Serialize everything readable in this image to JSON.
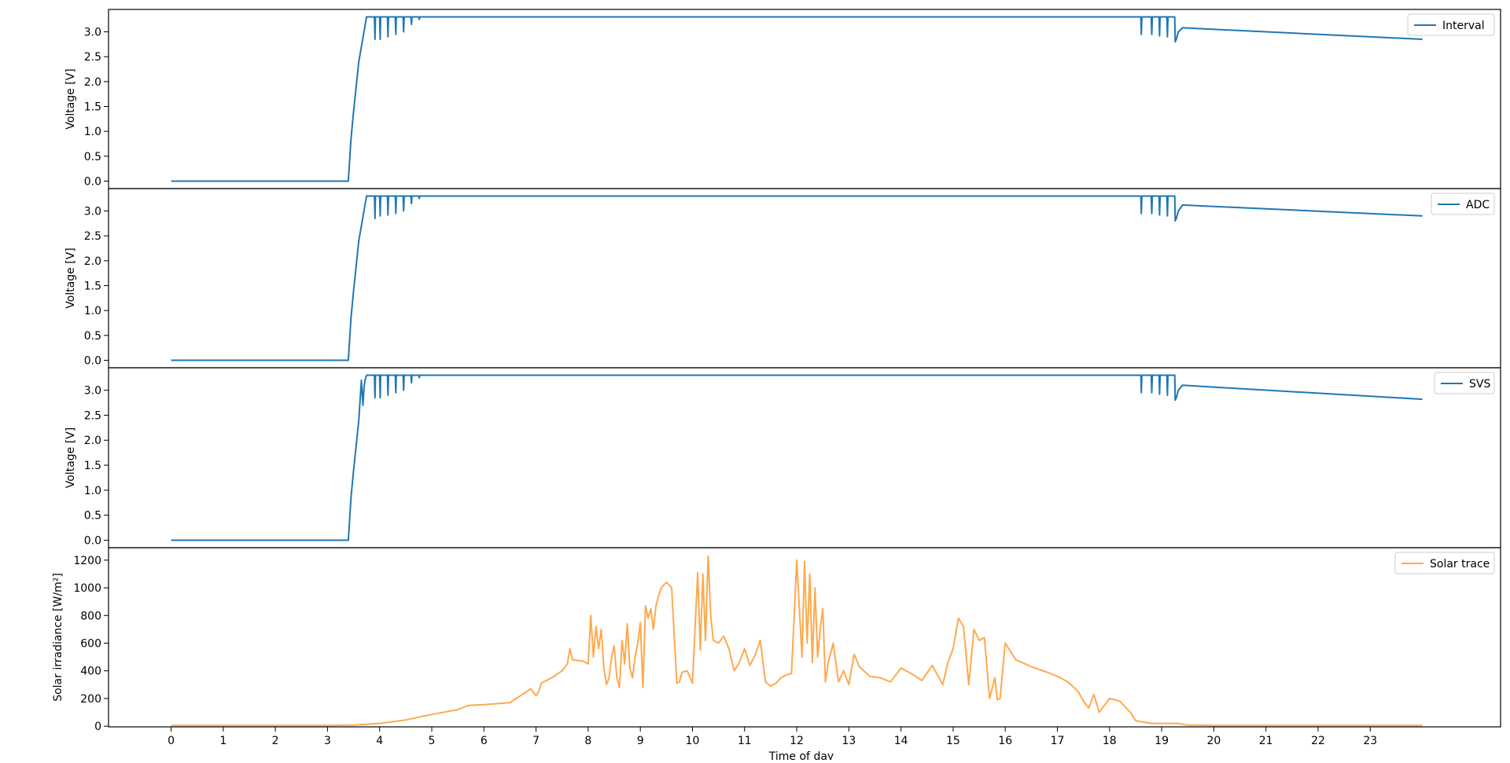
{
  "chart_data": [
    {
      "type": "line",
      "ylabel": "Voltage [V]",
      "xlim": [
        -1.2,
        25.5
      ],
      "ylim": [
        -0.15,
        3.45
      ],
      "yticks": [
        0.0,
        0.5,
        1.0,
        1.5,
        2.0,
        2.5,
        3.0
      ],
      "ytick_labels": [
        "0.0",
        "0.5",
        "1.0",
        "1.5",
        "2.0",
        "2.5",
        "3.0"
      ],
      "grid": false,
      "legend_position": "top-right",
      "series": [
        {
          "name": "Interval",
          "color": "#1f77b4",
          "x": [
            0,
            3.4,
            3.45,
            3.5,
            3.6,
            3.7,
            3.75,
            3.9,
            3.91,
            3.92,
            4.0,
            4.01,
            4.02,
            4.15,
            4.16,
            4.17,
            4.3,
            4.31,
            4.32,
            4.45,
            4.46,
            4.47,
            4.6,
            4.61,
            4.62,
            4.75,
            4.76,
            4.77,
            18.5,
            18.6,
            18.61,
            18.62,
            18.8,
            18.81,
            18.82,
            18.95,
            18.96,
            18.97,
            19.1,
            19.11,
            19.12,
            19.25,
            19.26,
            19.28,
            19.32,
            19.4,
            24
          ],
          "y": [
            0,
            0,
            0.85,
            1.4,
            2.4,
            3.0,
            3.3,
            3.3,
            2.85,
            3.3,
            3.3,
            2.85,
            3.3,
            3.3,
            2.9,
            3.3,
            3.3,
            2.95,
            3.3,
            3.3,
            3.0,
            3.3,
            3.3,
            3.15,
            3.3,
            3.3,
            3.25,
            3.3,
            3.3,
            3.3,
            2.95,
            3.3,
            3.3,
            2.95,
            3.3,
            3.3,
            2.92,
            3.3,
            3.3,
            2.9,
            3.3,
            3.3,
            2.8,
            2.85,
            3.0,
            3.08,
            2.85
          ]
        }
      ]
    },
    {
      "type": "line",
      "ylabel": "Voltage [V]",
      "xlim": [
        -1.2,
        25.5
      ],
      "ylim": [
        -0.15,
        3.45
      ],
      "yticks": [
        0.0,
        0.5,
        1.0,
        1.5,
        2.0,
        2.5,
        3.0
      ],
      "ytick_labels": [
        "0.0",
        "0.5",
        "1.0",
        "1.5",
        "2.0",
        "2.5",
        "3.0"
      ],
      "grid": false,
      "legend_position": "top-right",
      "series": [
        {
          "name": "ADC",
          "color": "#1f77b4",
          "x": [
            0,
            3.4,
            3.45,
            3.5,
            3.6,
            3.7,
            3.75,
            3.9,
            3.91,
            3.92,
            4.0,
            4.01,
            4.02,
            4.15,
            4.16,
            4.17,
            4.3,
            4.31,
            4.32,
            4.45,
            4.46,
            4.47,
            4.6,
            4.61,
            4.62,
            4.75,
            4.76,
            4.77,
            18.6,
            18.61,
            18.62,
            18.8,
            18.81,
            18.82,
            18.95,
            18.96,
            18.97,
            19.1,
            19.11,
            19.12,
            19.25,
            19.26,
            19.28,
            19.32,
            19.4,
            24
          ],
          "y": [
            0,
            0,
            0.85,
            1.4,
            2.4,
            3.0,
            3.3,
            3.3,
            2.85,
            3.3,
            3.3,
            2.9,
            3.3,
            3.3,
            2.92,
            3.3,
            3.3,
            2.95,
            3.3,
            3.3,
            3.0,
            3.3,
            3.3,
            3.15,
            3.3,
            3.3,
            3.25,
            3.3,
            3.3,
            2.95,
            3.3,
            3.3,
            2.95,
            3.3,
            3.3,
            2.92,
            3.3,
            3.3,
            2.9,
            3.3,
            3.3,
            2.8,
            2.85,
            3.0,
            3.12,
            2.9
          ]
        }
      ]
    },
    {
      "type": "line",
      "ylabel": "Voltage [V]",
      "xlim": [
        -1.2,
        25.5
      ],
      "ylim": [
        -0.15,
        3.45
      ],
      "yticks": [
        0.0,
        0.5,
        1.0,
        1.5,
        2.0,
        2.5,
        3.0
      ],
      "ytick_labels": [
        "0.0",
        "0.5",
        "1.0",
        "1.5",
        "2.0",
        "2.5",
        "3.0"
      ],
      "grid": false,
      "legend_position": "top-right",
      "series": [
        {
          "name": "SVS",
          "color": "#1f77b4",
          "x": [
            0,
            3.4,
            3.45,
            3.5,
            3.6,
            3.65,
            3.68,
            3.7,
            3.72,
            3.75,
            3.9,
            3.91,
            3.92,
            4.0,
            4.01,
            4.02,
            4.15,
            4.16,
            4.17,
            4.3,
            4.31,
            4.32,
            4.45,
            4.46,
            4.47,
            4.6,
            4.61,
            4.62,
            4.75,
            4.76,
            4.77,
            18.5,
            18.6,
            18.61,
            18.62,
            18.8,
            18.81,
            18.82,
            18.95,
            18.96,
            18.97,
            19.1,
            19.11,
            19.12,
            19.25,
            19.26,
            19.28,
            19.32,
            19.4,
            24
          ],
          "y": [
            0,
            0,
            0.85,
            1.4,
            2.4,
            3.2,
            2.7,
            3.05,
            3.2,
            3.3,
            3.3,
            2.85,
            3.3,
            3.3,
            2.85,
            3.3,
            3.3,
            2.9,
            3.3,
            3.3,
            2.95,
            3.3,
            3.3,
            3.0,
            3.3,
            3.3,
            3.15,
            3.3,
            3.3,
            3.25,
            3.3,
            3.3,
            3.3,
            2.95,
            3.3,
            3.3,
            2.95,
            3.3,
            3.3,
            2.92,
            3.3,
            3.3,
            2.9,
            3.3,
            3.3,
            2.8,
            2.85,
            3.0,
            3.1,
            2.82
          ]
        }
      ]
    },
    {
      "type": "line",
      "ylabel": "Solar irradiance [W/m²]",
      "xlabel": "Time of day",
      "xlim": [
        -1.2,
        25.5
      ],
      "ylim": [
        -5,
        1290
      ],
      "yticks": [
        0,
        200,
        400,
        600,
        800,
        1000,
        1200
      ],
      "ytick_labels": [
        "0",
        "200",
        "400",
        "600",
        "800",
        "1000",
        "1200"
      ],
      "xticks": [
        0,
        1,
        2,
        3,
        4,
        5,
        6,
        7,
        8,
        9,
        10,
        11,
        12,
        13,
        14,
        15,
        16,
        17,
        18,
        19,
        20,
        21,
        22,
        23
      ],
      "xtick_labels": [
        "0",
        "1",
        "2",
        "3",
        "4",
        "5",
        "6",
        "7",
        "8",
        "9",
        "10",
        "11",
        "12",
        "13",
        "14",
        "15",
        "16",
        "17",
        "18",
        "19",
        "20",
        "21",
        "22",
        "23"
      ],
      "grid": false,
      "legend_position": "top-right",
      "series": [
        {
          "name": "Solar trace",
          "color": "#ffa94d",
          "x": [
            0,
            3.0,
            3.5,
            4.0,
            4.5,
            5.0,
            5.5,
            5.7,
            6.0,
            6.5,
            6.9,
            7.0,
            7.05,
            7.1,
            7.3,
            7.5,
            7.6,
            7.65,
            7.7,
            7.9,
            8.0,
            8.05,
            8.1,
            8.15,
            8.2,
            8.25,
            8.3,
            8.35,
            8.4,
            8.45,
            8.5,
            8.55,
            8.6,
            8.65,
            8.7,
            8.75,
            8.8,
            8.85,
            8.9,
            8.95,
            9.0,
            9.05,
            9.1,
            9.15,
            9.2,
            9.25,
            9.3,
            9.35,
            9.4,
            9.5,
            9.6,
            9.7,
            9.75,
            9.8,
            9.9,
            10.0,
            10.1,
            10.15,
            10.2,
            10.25,
            10.3,
            10.35,
            10.4,
            10.5,
            10.6,
            10.7,
            10.8,
            10.9,
            11.0,
            11.1,
            11.2,
            11.3,
            11.4,
            11.5,
            11.6,
            11.7,
            11.8,
            11.9,
            12.0,
            12.1,
            12.15,
            12.2,
            12.25,
            12.3,
            12.35,
            12.4,
            12.45,
            12.5,
            12.55,
            12.6,
            12.7,
            12.8,
            12.9,
            13.0,
            13.1,
            13.2,
            13.4,
            13.6,
            13.8,
            14.0,
            14.2,
            14.4,
            14.6,
            14.8,
            14.9,
            15.0,
            15.1,
            15.2,
            15.3,
            15.4,
            15.5,
            15.6,
            15.7,
            15.8,
            15.85,
            15.9,
            16.0,
            16.2,
            16.5,
            16.8,
            17.0,
            17.2,
            17.4,
            17.5,
            17.6,
            17.7,
            17.8,
            18.0,
            18.2,
            18.4,
            18.5,
            18.8,
            19.0,
            19.3,
            19.5,
            20.0,
            24
          ],
          "y": [
            5,
            5,
            8,
            20,
            45,
            85,
            120,
            150,
            155,
            170,
            270,
            220,
            250,
            310,
            350,
            400,
            450,
            560,
            480,
            470,
            450,
            800,
            500,
            720,
            560,
            700,
            420,
            300,
            350,
            500,
            580,
            350,
            280,
            620,
            450,
            740,
            420,
            350,
            500,
            600,
            750,
            280,
            870,
            780,
            850,
            700,
            870,
            940,
            1000,
            1040,
            1000,
            310,
            320,
            390,
            400,
            310,
            1110,
            550,
            1100,
            620,
            1230,
            800,
            620,
            600,
            650,
            560,
            400,
            460,
            560,
            440,
            510,
            620,
            320,
            290,
            310,
            350,
            370,
            380,
            1200,
            500,
            1190,
            600,
            1100,
            460,
            1000,
            500,
            700,
            850,
            320,
            450,
            600,
            320,
            400,
            300,
            520,
            430,
            360,
            350,
            320,
            420,
            380,
            330,
            440,
            300,
            460,
            560,
            780,
            720,
            300,
            700,
            620,
            640,
            200,
            350,
            190,
            200,
            600,
            480,
            430,
            390,
            360,
            320,
            250,
            180,
            130,
            230,
            100,
            200,
            180,
            100,
            40,
            20,
            20,
            20,
            8,
            5,
            5
          ]
        }
      ]
    }
  ]
}
